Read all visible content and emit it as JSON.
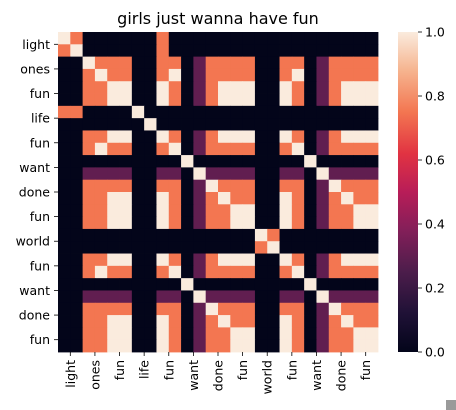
{
  "chart_data": {
    "type": "heatmap",
    "title": "girls just wanna have fun",
    "row_labels": [
      "light",
      "ones",
      "fun",
      "life",
      "fun",
      "want",
      "done",
      "fun",
      "world",
      "fun",
      "want",
      "done",
      "fun"
    ],
    "col_labels": [
      "light",
      "ones",
      "fun",
      "life",
      "fun",
      "want",
      "done",
      "fun",
      "world",
      "fun",
      "want",
      "done",
      "fun"
    ],
    "colorbar": {
      "min": 0.0,
      "max": 1.0,
      "ticks": [
        "0.0",
        "0.2",
        "0.4",
        "0.6",
        "0.8",
        "1.0"
      ]
    },
    "tokens": [
      "light",
      "light",
      "ones",
      "ones",
      "fun",
      "fun",
      "life",
      "life",
      "fun",
      "fun",
      "want",
      "want",
      "done",
      "done",
      "fun",
      "fun",
      "world",
      "world",
      "fun",
      "fun",
      "want",
      "want",
      "done",
      "done",
      "fun",
      "fun"
    ],
    "matrix": [
      [
        1,
        0.75,
        0,
        0,
        0,
        0,
        0,
        0,
        0.75,
        0,
        0,
        0,
        0,
        0,
        0,
        0,
        0,
        0,
        0,
        0,
        0,
        0,
        0,
        0,
        0,
        0
      ],
      [
        0.75,
        1,
        0,
        0,
        0,
        0,
        0,
        0,
        0.75,
        0,
        0,
        0,
        0,
        0,
        0,
        0,
        0,
        0,
        0,
        0,
        0,
        0,
        0,
        0,
        0,
        0
      ],
      [
        0,
        0,
        1,
        0.75,
        0.75,
        0.75,
        0,
        0,
        0.75,
        0.75,
        0,
        0.3,
        0.75,
        0.75,
        0.75,
        0.75,
        0,
        0,
        0.75,
        0.75,
        0,
        0.3,
        0.75,
        0.75,
        0.75,
        0.75
      ],
      [
        0,
        0,
        0.75,
        1,
        0.75,
        0.75,
        0,
        0,
        0.75,
        1,
        0,
        0.3,
        0.75,
        0.75,
        0.75,
        0.75,
        0,
        0,
        0.75,
        1,
        0,
        0.3,
        0.75,
        0.75,
        0.75,
        0.75
      ],
      [
        0,
        0,
        0.75,
        0.75,
        1,
        1,
        0,
        0,
        1,
        0.75,
        0,
        0.3,
        0.75,
        1,
        1,
        1,
        0,
        0,
        1,
        0.75,
        0,
        0.3,
        0.75,
        1,
        1,
        1
      ],
      [
        0,
        0,
        0.75,
        0.75,
        1,
        1,
        0,
        0,
        1,
        0.75,
        0,
        0.3,
        0.75,
        1,
        1,
        1,
        0,
        0,
        1,
        0.75,
        0,
        0.3,
        0.75,
        1,
        1,
        1
      ],
      [
        0.75,
        0.75,
        0,
        0,
        0,
        0,
        1,
        0,
        0,
        0,
        0,
        0,
        0,
        0,
        0,
        0,
        0,
        0,
        0,
        0,
        0,
        0,
        0,
        0,
        0,
        0
      ],
      [
        0,
        0,
        0,
        0,
        0,
        0,
        0,
        1,
        0,
        0,
        0,
        0,
        0,
        0,
        0,
        0,
        0,
        0,
        0,
        0,
        0,
        0,
        0,
        0,
        0,
        0
      ],
      [
        0,
        0,
        0.75,
        0.75,
        1,
        1,
        0,
        0,
        1,
        0.75,
        0,
        0.3,
        0.75,
        1,
        1,
        1,
        0,
        0,
        1,
        0.75,
        0,
        0.3,
        0.75,
        1,
        1,
        1
      ],
      [
        0,
        0,
        0.75,
        1,
        0.75,
        0.75,
        0,
        0,
        0.75,
        1,
        0,
        0.3,
        0.75,
        0.75,
        0.75,
        0.75,
        0,
        0,
        0.75,
        1,
        0,
        0.3,
        0.75,
        0.75,
        0.75,
        0.75
      ],
      [
        0,
        0,
        0,
        0,
        0,
        0,
        0,
        0,
        0,
        0,
        1,
        0,
        0,
        0,
        0,
        0,
        0,
        0,
        0,
        0,
        1,
        0,
        0,
        0,
        0,
        0
      ],
      [
        0,
        0,
        0.3,
        0.3,
        0.3,
        0.3,
        0,
        0,
        0.3,
        0.3,
        0,
        1,
        0.3,
        0.3,
        0.3,
        0.3,
        0,
        0,
        0.3,
        0.3,
        0,
        1,
        0.3,
        0.3,
        0.3,
        0.3
      ],
      [
        0,
        0,
        0.75,
        0.75,
        0.75,
        0.75,
        0,
        0,
        0.75,
        0.75,
        0,
        0.3,
        1,
        0.75,
        0.75,
        0.75,
        0,
        0,
        0.75,
        0.75,
        0,
        0.3,
        1,
        0.75,
        0.75,
        0.75
      ],
      [
        0,
        0,
        0.75,
        0.75,
        1,
        1,
        0,
        0,
        1,
        0.75,
        0,
        0.3,
        0.75,
        1,
        0.75,
        0.75,
        0,
        0,
        1,
        0.75,
        0,
        0.3,
        0.75,
        1,
        0.75,
        0.75
      ],
      [
        0,
        0,
        0.75,
        0.75,
        1,
        1,
        0,
        0,
        1,
        0.75,
        0,
        0.3,
        0.75,
        0.75,
        1,
        1,
        0,
        0,
        1,
        0.75,
        0,
        0.3,
        0.75,
        0.75,
        1,
        1
      ],
      [
        0,
        0,
        0.75,
        0.75,
        1,
        1,
        0,
        0,
        1,
        0.75,
        0,
        0.3,
        0.75,
        0.75,
        1,
        1,
        0,
        0,
        1,
        0.75,
        0,
        0.3,
        0.75,
        0.75,
        1,
        1
      ],
      [
        0,
        0,
        0,
        0,
        0,
        0,
        0,
        0,
        0,
        0,
        0,
        0,
        0,
        0,
        0,
        0,
        1,
        0.75,
        0,
        0,
        0,
        0,
        0,
        0,
        0,
        0
      ],
      [
        0,
        0,
        0,
        0,
        0,
        0,
        0,
        0,
        0,
        0,
        0,
        0,
        0,
        0,
        0,
        0,
        0.75,
        1,
        0,
        0,
        0,
        0,
        0,
        0,
        0,
        0
      ],
      [
        0,
        0,
        0.75,
        0.75,
        1,
        1,
        0,
        0,
        1,
        0.75,
        0,
        0.3,
        0.75,
        1,
        1,
        1,
        0,
        0,
        1,
        0.75,
        0,
        0.3,
        0.75,
        1,
        1,
        1
      ],
      [
        0,
        0,
        0.75,
        1,
        0.75,
        0.75,
        0,
        0,
        0.75,
        1,
        0,
        0.3,
        0.75,
        0.75,
        0.75,
        0.75,
        0,
        0,
        0.75,
        1,
        0,
        0.3,
        0.75,
        0.75,
        0.75,
        0.75
      ],
      [
        0,
        0,
        0,
        0,
        0,
        0,
        0,
        0,
        0,
        0,
        1,
        0,
        0,
        0,
        0,
        0,
        0,
        0,
        0,
        0,
        1,
        0,
        0,
        0,
        0,
        0
      ],
      [
        0,
        0,
        0.3,
        0.3,
        0.3,
        0.3,
        0,
        0,
        0.3,
        0.3,
        0,
        1,
        0.3,
        0.3,
        0.3,
        0.3,
        0,
        0,
        0.3,
        0.3,
        0,
        1,
        0.3,
        0.3,
        0.3,
        0.3
      ],
      [
        0,
        0,
        0.75,
        0.75,
        0.75,
        0.75,
        0,
        0,
        0.75,
        0.75,
        0,
        0.3,
        1,
        0.75,
        0.75,
        0.75,
        0,
        0,
        0.75,
        0.75,
        0,
        0.3,
        1,
        0.75,
        0.75,
        0.75
      ],
      [
        0,
        0,
        0.75,
        0.75,
        1,
        1,
        0,
        0,
        1,
        0.75,
        0,
        0.3,
        0.75,
        1,
        0.75,
        0.75,
        0,
        0,
        1,
        0.75,
        0,
        0.3,
        0.75,
        1,
        0.75,
        0.75
      ],
      [
        0,
        0,
        0.75,
        0.75,
        1,
        1,
        0,
        0,
        1,
        0.75,
        0,
        0.3,
        0.75,
        0.75,
        1,
        1,
        0,
        0,
        1,
        0.75,
        0,
        0.3,
        0.75,
        0.75,
        1,
        1
      ],
      [
        0,
        0,
        0.75,
        0.75,
        1,
        1,
        0,
        0,
        1,
        0.75,
        0,
        0.3,
        0.75,
        0.75,
        1,
        1,
        0,
        0,
        1,
        0.75,
        0,
        0.3,
        0.75,
        0.75,
        1,
        1
      ]
    ]
  }
}
